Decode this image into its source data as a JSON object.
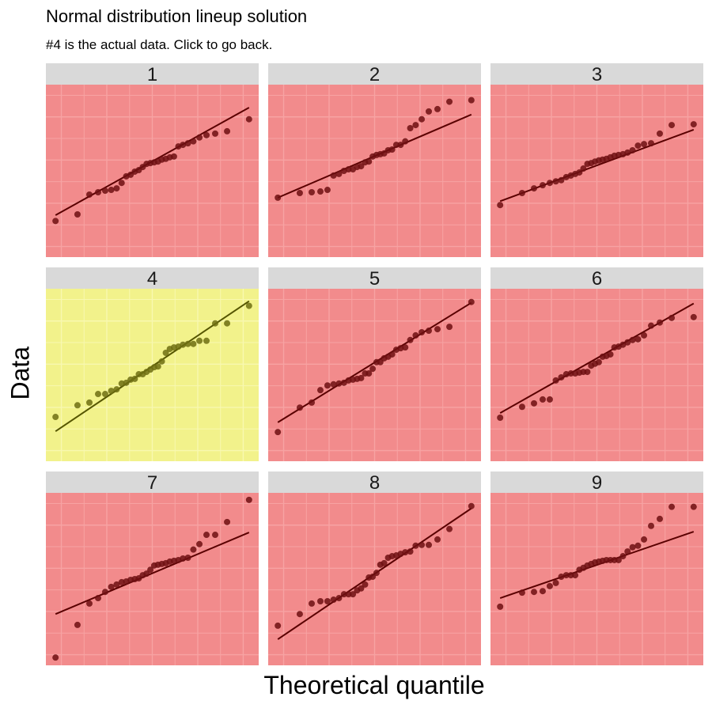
{
  "title": "Normal distribution lineup solution",
  "subtitle": "#4 is the actual data. Click to go back.",
  "chart_data": {
    "type": "scatter",
    "subtype": "qq-plot lineup (faceted 3x3)",
    "xlabel": "Theoretical quantile",
    "ylabel": "Data",
    "xlim": [
      -2.34,
      2.34
    ],
    "ylim": [
      -2.22,
      2.22
    ],
    "axis_ticks_shown": false,
    "grid": true,
    "actual_panel": "4",
    "colors": {
      "decoy_background": "#f28b8c",
      "decoy_grid": "#f7a3a3",
      "decoy_points": "#6e0f12",
      "decoy_line": "#5a0000",
      "actual_background": "#f2f28b",
      "actual_grid": "#f8f8b0",
      "actual_points": "#6f6f12",
      "actual_line": "#555500",
      "strip": "#d9d9d9"
    },
    "x": [
      -2.128,
      -1.645,
      -1.383,
      -1.192,
      -1.036,
      -0.903,
      -0.784,
      -0.674,
      -0.573,
      -0.477,
      -0.385,
      -0.297,
      -0.21,
      -0.126,
      -0.042,
      0.042,
      0.126,
      0.21,
      0.297,
      0.385,
      0.477,
      0.573,
      0.674,
      0.784,
      0.903,
      1.036,
      1.192,
      1.383,
      1.645,
      2.128
    ],
    "panels": [
      {
        "label": "1",
        "is_actual": false,
        "line": [
          -1.14,
          1.63
        ],
        "y": [
          -1.29,
          -1.12,
          -0.61,
          -0.55,
          -0.51,
          -0.49,
          -0.45,
          -0.31,
          -0.14,
          -0.1,
          -0.02,
          0.02,
          0.1,
          0.18,
          0.2,
          0.22,
          0.24,
          0.29,
          0.31,
          0.35,
          0.37,
          0.63,
          0.67,
          0.71,
          0.76,
          0.86,
          0.92,
          0.96,
          1.02,
          1.33
        ]
      },
      {
        "label": "2",
        "is_actual": false,
        "line": [
          -0.69,
          1.45
        ],
        "y": [
          -0.69,
          -0.57,
          -0.55,
          -0.53,
          -0.49,
          -0.12,
          -0.08,
          0.0,
          0.04,
          0.04,
          0.1,
          0.12,
          0.22,
          0.24,
          0.37,
          0.41,
          0.43,
          0.45,
          0.53,
          0.55,
          0.67,
          0.67,
          0.76,
          1.1,
          1.18,
          1.33,
          1.53,
          1.59,
          1.78,
          1.82
        ]
      },
      {
        "label": "3",
        "is_actual": false,
        "line": [
          -0.78,
          1.06
        ],
        "y": [
          -0.88,
          -0.57,
          -0.45,
          -0.37,
          -0.31,
          -0.27,
          -0.24,
          -0.16,
          -0.12,
          -0.08,
          -0.04,
          0.06,
          0.18,
          0.2,
          0.24,
          0.27,
          0.29,
          0.31,
          0.35,
          0.39,
          0.41,
          0.43,
          0.47,
          0.53,
          0.65,
          0.69,
          0.71,
          0.96,
          1.18,
          1.2
        ]
      },
      {
        "label": "4",
        "is_actual": true,
        "line": [
          -1.45,
          1.9
        ],
        "y": [
          -1.08,
          -0.78,
          -0.71,
          -0.49,
          -0.49,
          -0.41,
          -0.37,
          -0.22,
          -0.2,
          -0.12,
          -0.1,
          0.02,
          0.02,
          0.08,
          0.14,
          0.2,
          0.22,
          0.35,
          0.57,
          0.67,
          0.71,
          0.73,
          0.78,
          0.8,
          0.8,
          0.88,
          0.88,
          1.33,
          1.33,
          1.78
        ]
      },
      {
        "label": "5",
        "is_actual": false,
        "line": [
          -1.22,
          1.86
        ],
        "y": [
          -1.47,
          -0.84,
          -0.71,
          -0.39,
          -0.27,
          -0.24,
          -0.22,
          -0.2,
          -0.14,
          -0.12,
          -0.1,
          -0.08,
          0.04,
          0.04,
          0.16,
          0.33,
          0.33,
          0.43,
          0.47,
          0.53,
          0.65,
          0.69,
          0.71,
          0.9,
          1.02,
          1.1,
          1.14,
          1.18,
          1.24,
          1.88
        ]
      },
      {
        "label": "6",
        "is_actual": false,
        "line": [
          -0.98,
          1.84
        ],
        "y": [
          -1.1,
          -0.82,
          -0.73,
          -0.63,
          -0.63,
          -0.14,
          -0.06,
          0.02,
          0.04,
          0.04,
          0.06,
          0.08,
          0.08,
          0.24,
          0.29,
          0.33,
          0.47,
          0.49,
          0.53,
          0.71,
          0.73,
          0.78,
          0.84,
          0.9,
          0.92,
          1.02,
          1.27,
          1.35,
          1.47,
          1.49
        ]
      },
      {
        "label": "7",
        "is_actual": false,
        "line": [
          -0.9,
          1.2
        ],
        "y": [
          -2.02,
          -1.18,
          -0.63,
          -0.49,
          -0.33,
          -0.2,
          -0.14,
          -0.08,
          -0.06,
          -0.02,
          0.0,
          0.02,
          0.1,
          0.14,
          0.24,
          0.35,
          0.37,
          0.39,
          0.41,
          0.45,
          0.47,
          0.49,
          0.53,
          0.55,
          0.76,
          0.9,
          1.14,
          1.14,
          1.47,
          2.04
        ]
      },
      {
        "label": "8",
        "is_actual": false,
        "line": [
          -1.55,
          1.82
        ],
        "y": [
          -1.2,
          -0.9,
          -0.63,
          -0.57,
          -0.57,
          -0.53,
          -0.49,
          -0.39,
          -0.39,
          -0.39,
          -0.29,
          -0.24,
          -0.14,
          0.04,
          0.06,
          0.16,
          0.37,
          0.41,
          0.55,
          0.59,
          0.61,
          0.65,
          0.69,
          0.71,
          0.86,
          0.88,
          0.88,
          1.02,
          1.29,
          1.88
        ]
      },
      {
        "label": "9",
        "is_actual": false,
        "line": [
          -0.49,
          1.22
        ],
        "y": [
          -0.71,
          -0.35,
          -0.33,
          -0.31,
          -0.18,
          -0.1,
          0.06,
          0.1,
          0.1,
          0.1,
          0.24,
          0.29,
          0.35,
          0.39,
          0.43,
          0.45,
          0.47,
          0.49,
          0.49,
          0.49,
          0.49,
          0.59,
          0.71,
          0.82,
          0.86,
          1.02,
          1.37,
          1.55,
          1.86,
          1.86
        ]
      }
    ]
  }
}
